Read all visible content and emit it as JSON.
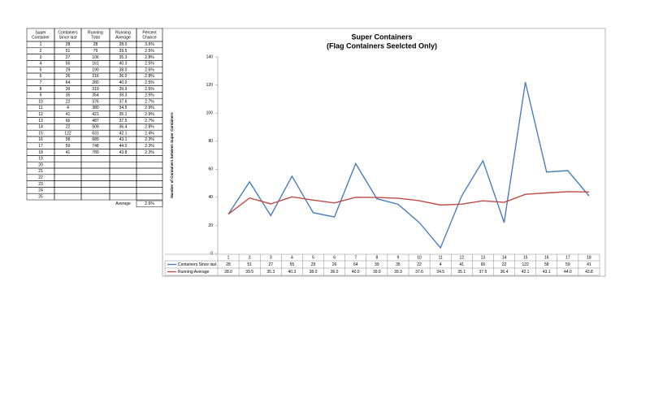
{
  "table": {
    "header": [
      "Super Container",
      "Containers Since last",
      "Running Total",
      "Running Average",
      "Percent Chance"
    ],
    "rows": [
      [
        "1",
        "28",
        "28",
        "28.0",
        "3.6%"
      ],
      [
        "2",
        "51",
        "79",
        "39.5",
        "2.5%"
      ],
      [
        "3",
        "27",
        "106",
        "35.3",
        "2.8%"
      ],
      [
        "4",
        "55",
        "161",
        "40.3",
        "2.5%"
      ],
      [
        "5",
        "29",
        "190",
        "38.0",
        "2.6%"
      ],
      [
        "6",
        "26",
        "216",
        "36.0",
        "2.8%"
      ],
      [
        "7",
        "64",
        "280",
        "40.0",
        "2.5%"
      ],
      [
        "8",
        "39",
        "319",
        "39.9",
        "2.5%"
      ],
      [
        "9",
        "35",
        "354",
        "39.3",
        "2.5%"
      ],
      [
        "10",
        "22",
        "376",
        "37.6",
        "2.7%"
      ],
      [
        "11",
        "4",
        "380",
        "34.5",
        "2.9%"
      ],
      [
        "12",
        "41",
        "421",
        "35.1",
        "2.9%"
      ],
      [
        "13",
        "66",
        "487",
        "37.5",
        "2.7%"
      ],
      [
        "14",
        "22",
        "509",
        "36.4",
        "2.8%"
      ],
      [
        "15",
        "122",
        "631",
        "42.1",
        "2.4%"
      ],
      [
        "16",
        "58",
        "689",
        "43.1",
        "2.3%"
      ],
      [
        "17",
        "59",
        "748",
        "44.0",
        "2.3%"
      ],
      [
        "18",
        "41",
        "789",
        "43.8",
        "2.3%"
      ],
      [
        "19"
      ],
      [
        "20"
      ],
      [
        "21"
      ],
      [
        "22"
      ],
      [
        "23"
      ],
      [
        "24"
      ],
      [
        "25"
      ]
    ],
    "average_label": "Average",
    "average_value": "2.6%"
  },
  "chart_data": {
    "type": "line",
    "title": "Super Containers",
    "subtitle": "(Flag Containers Seelcted Only)",
    "y_label": "Number of Containers between Super Containers",
    "categories": [
      "1",
      "2",
      "3",
      "4",
      "5",
      "6",
      "7",
      "8",
      "9",
      "10",
      "11",
      "12",
      "13",
      "14",
      "15",
      "16",
      "17",
      "18"
    ],
    "series": [
      {
        "name": "Containers Since last",
        "color": "#4a7ebb",
        "values": [
          28,
          51,
          27,
          55,
          29,
          26,
          64,
          39,
          35,
          22,
          4,
          41,
          66,
          22,
          122,
          58,
          59,
          41
        ]
      },
      {
        "name": "Running Average",
        "color": "#be4b48",
        "values": [
          28,
          39.5,
          35.3,
          40.3,
          38,
          36,
          40,
          39.9,
          39.3,
          37.6,
          34.5,
          35.1,
          37.5,
          36.4,
          42.1,
          43.1,
          44,
          43.8
        ],
        "value_labels": [
          "28.0",
          "39.5",
          "35.3",
          "40.3",
          "38.0",
          "36.0",
          "40.0",
          "39.9",
          "39.3",
          "37.6",
          "34.5",
          "35.1",
          "37.5",
          "36.4",
          "42.1",
          "43.1",
          "44.0",
          "43.8"
        ]
      }
    ],
    "ylim": [
      0,
      140
    ],
    "yticks": [
      0,
      20,
      40,
      60,
      80,
      100,
      120,
      140
    ],
    "grid": false,
    "data_table": true
  }
}
